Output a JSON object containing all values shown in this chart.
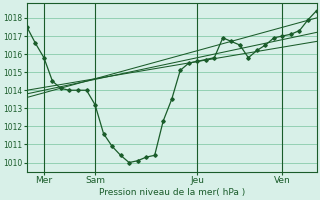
{
  "title": "Pression niveau de la mer( hPa )",
  "bg_color": "#d8f0e8",
  "grid_color": "#88ccaa",
  "line_color": "#1a5c2a",
  "spine_color": "#1a5c2a",
  "ylim": [
    1009.5,
    1018.8
  ],
  "yticks": [
    1010,
    1011,
    1012,
    1013,
    1014,
    1015,
    1016,
    1017,
    1018
  ],
  "xlim": [
    0,
    17.0
  ],
  "day_labels": [
    "Mer",
    "Sam",
    "Jeu",
    "Ven"
  ],
  "day_positions": [
    1.0,
    4.0,
    10.0,
    15.0
  ],
  "day_vlines": [
    1.0,
    4.0,
    10.0,
    15.0
  ],
  "series1_x": [
    0.0,
    0.5,
    1.0,
    1.5,
    2.0,
    2.5,
    3.0,
    3.5,
    4.0,
    4.5,
    5.0,
    5.5,
    6.0,
    6.5,
    7.0,
    7.5,
    8.0,
    8.5,
    9.0,
    9.5,
    10.0,
    10.5,
    11.0,
    11.5,
    12.0,
    12.5,
    13.0,
    13.5,
    14.0,
    14.5,
    15.0,
    15.5,
    16.0,
    16.5,
    17.0
  ],
  "series1_y": [
    1017.5,
    1016.6,
    1015.8,
    1014.5,
    1014.1,
    1014.0,
    1014.0,
    1014.0,
    1013.2,
    1011.6,
    1010.9,
    1010.4,
    1010.0,
    1010.1,
    1010.3,
    1010.4,
    1012.3,
    1013.5,
    1015.1,
    1015.5,
    1015.6,
    1015.7,
    1015.8,
    1016.9,
    1016.7,
    1016.5,
    1015.8,
    1016.2,
    1016.5,
    1016.9,
    1017.0,
    1017.1,
    1017.3,
    1017.9,
    1018.4
  ],
  "series2_x": [
    0.0,
    17.0
  ],
  "series2_y": [
    1014.0,
    1016.7
  ],
  "series3_x": [
    0.0,
    17.0
  ],
  "series3_y": [
    1013.8,
    1017.2
  ],
  "series4_x": [
    0.0,
    17.0
  ],
  "series4_y": [
    1013.6,
    1018.0
  ]
}
